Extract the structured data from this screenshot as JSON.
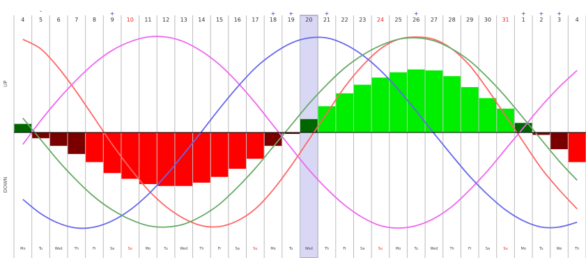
{
  "chart_data": {
    "type": "bar",
    "title": "",
    "xlabel": "",
    "ylabel": "",
    "top_labels": [
      "4",
      "5",
      "6",
      "7",
      "8",
      "9",
      "10",
      "11",
      "12",
      "13",
      "14",
      "15",
      "16",
      "17",
      "18",
      "19",
      "20",
      "21",
      "22",
      "23",
      "24",
      "25",
      "26",
      "27",
      "28",
      "29",
      "30",
      "31",
      "1",
      "2",
      "3",
      "4"
    ],
    "bottom_labels": [
      "Mo",
      "Tu",
      "Wed",
      "Th",
      "Fr",
      "Sa",
      "Su",
      "Mo",
      "Tu",
      "Wed",
      "Th",
      "Fr",
      "Sa",
      "Su",
      "Mo",
      "Tu",
      "Wed",
      "Th",
      "Fr",
      "Sa",
      "Su",
      "Mo",
      "Tu",
      "Wed",
      "Th",
      "Fr",
      "Sa",
      "Su",
      "Mo",
      "Tu",
      "We",
      "Th"
    ],
    "red_top_label_indices": [
      6,
      20,
      27
    ],
    "red_bottom_label_indices": [
      6,
      13,
      20,
      27
    ],
    "top_markers": [
      "",
      "ˇ",
      "",
      "",
      "",
      "+",
      "",
      "",
      "",
      "",
      "",
      "",
      "",
      "",
      "+",
      "+",
      "",
      "+",
      "",
      "",
      "",
      "",
      "+",
      "",
      "",
      "",
      "",
      "",
      "+",
      "+",
      "+",
      ""
    ],
    "highlight_index": 16,
    "side_labels": [
      "UP",
      "DOWN"
    ],
    "values": [
      0.18,
      -0.12,
      -0.28,
      -0.45,
      -0.62,
      -0.85,
      -0.97,
      -1.08,
      -1.12,
      -1.12,
      -1.05,
      -0.93,
      -0.76,
      -0.55,
      -0.28,
      -0.03,
      0.28,
      0.55,
      0.82,
      1.0,
      1.15,
      1.26,
      1.32,
      1.3,
      1.18,
      0.95,
      0.72,
      0.5,
      0.2,
      -0.05,
      -0.35,
      -0.62
    ],
    "bar_colors": {
      "positive_strong": "#00ee00",
      "positive_weak": "#006600",
      "negative_strong": "#ff0000",
      "negative_weak": "#7a0000"
    },
    "threshold": 0.5,
    "ylim": [
      -2.0,
      2.0
    ],
    "series": [
      {
        "color": "#ff6666",
        "values": [
          1.95,
          1.75,
          1.35,
          0.85,
          0.3,
          -0.25,
          -0.75,
          -1.2,
          -1.55,
          -1.8,
          -1.95,
          -1.97,
          -1.85,
          -1.6,
          -1.2,
          -0.7,
          -0.15,
          0.4,
          0.95,
          1.4,
          1.75,
          1.95,
          2.0,
          1.95,
          1.75,
          1.4,
          0.9,
          0.35,
          -0.2,
          -0.75,
          -1.2,
          -1.6
        ]
      },
      {
        "color": "#ee66ee",
        "values": [
          -0.25,
          0.25,
          0.7,
          1.1,
          1.45,
          1.72,
          1.9,
          2.0,
          2.0,
          1.9,
          1.7,
          1.42,
          1.05,
          0.62,
          0.15,
          -0.32,
          -0.78,
          -1.18,
          -1.52,
          -1.78,
          -1.95,
          -2.0,
          -1.95,
          -1.8,
          -1.55,
          -1.2,
          -0.8,
          -0.35,
          0.1,
          0.55,
          0.95,
          1.3
        ]
      },
      {
        "color": "#6666ee",
        "values": [
          -1.4,
          -1.7,
          -1.9,
          -2.0,
          -1.98,
          -1.85,
          -1.62,
          -1.3,
          -0.9,
          -0.45,
          0.02,
          0.5,
          0.95,
          1.35,
          1.65,
          1.87,
          1.98,
          1.98,
          1.85,
          1.62,
          1.3,
          0.9,
          0.45,
          -0.02,
          -0.48,
          -0.92,
          -1.3,
          -1.62,
          -1.85,
          -1.98,
          -1.98,
          -1.88
        ]
      },
      {
        "color": "#66aa66",
        "values": [
          0.3,
          -0.15,
          -0.6,
          -1.0,
          -1.35,
          -1.62,
          -1.82,
          -1.95,
          -1.98,
          -1.92,
          -1.75,
          -1.5,
          -1.15,
          -0.75,
          -0.3,
          0.15,
          0.6,
          1.0,
          1.35,
          1.62,
          1.82,
          1.95,
          1.98,
          1.92,
          1.75,
          1.5,
          1.15,
          0.75,
          0.3,
          -0.15,
          -0.6,
          -1.0
        ]
      }
    ]
  }
}
